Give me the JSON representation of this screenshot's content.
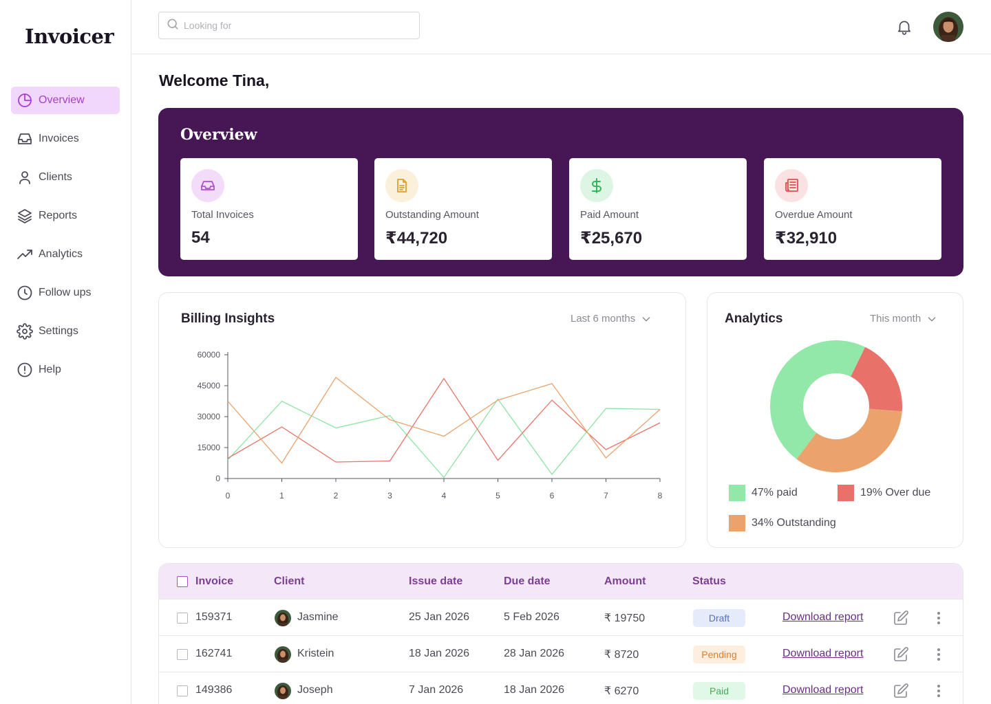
{
  "app": {
    "logo": "Invoicer"
  },
  "sidebar": {
    "items": [
      {
        "label": "Overview",
        "icon": "pie-chart-icon",
        "active": true
      },
      {
        "label": "Invoices",
        "icon": "inbox-icon"
      },
      {
        "label": "Clients",
        "icon": "user-icon"
      },
      {
        "label": "Reports",
        "icon": "layers-icon"
      },
      {
        "label": "Analytics",
        "icon": "trend-up-icon"
      },
      {
        "label": "Follow ups",
        "icon": "clock-icon"
      },
      {
        "label": "Settings",
        "icon": "gear-icon"
      },
      {
        "label": "Help",
        "icon": "alert-circle-icon"
      }
    ]
  },
  "header": {
    "search_placeholder": "Looking for"
  },
  "welcome": "Welcome Tina,",
  "overview": {
    "title": "Overview",
    "stats": [
      {
        "label": "Total Invoices",
        "value": "54",
        "icon": "inbox-icon",
        "color": "#b04fd0",
        "bg": "#f3dcfa"
      },
      {
        "label": "Outstanding Amount",
        "value": "₹44,720",
        "icon": "document-icon",
        "color": "#d9a12e",
        "bg": "#fbf0d9"
      },
      {
        "label": "Paid Amount",
        "value": "₹25,670",
        "icon": "dollar-icon",
        "color": "#33b55c",
        "bg": "#dcf6e3"
      },
      {
        "label": "Overdue Amount",
        "value": "₹32,910",
        "icon": "newspaper-icon",
        "color": "#e04d4d",
        "bg": "#fbe2e2"
      }
    ]
  },
  "billing": {
    "title": "Billing Insights",
    "range": "Last 6 months"
  },
  "analytics": {
    "title": "Analytics",
    "range": "This month"
  },
  "chart_data": [
    {
      "type": "line",
      "x": [
        0,
        1,
        2,
        3,
        4,
        5,
        6,
        7,
        8
      ],
      "ylim": [
        0,
        60000
      ],
      "yticks": [
        "60000",
        "45000",
        "30000",
        "15000",
        "0"
      ],
      "xticks": [
        "0",
        "1",
        "2",
        "3",
        "4",
        "5",
        "6",
        "7",
        "8"
      ],
      "series": [
        {
          "color": "#8ee3a4",
          "values": [
            9000,
            37500,
            24500,
            30500,
            500,
            38500,
            2000,
            34000,
            33500
          ]
        },
        {
          "color": "#e87268",
          "values": [
            9800,
            25000,
            8000,
            8500,
            48500,
            8800,
            38000,
            14000,
            27000
          ]
        },
        {
          "color": "#eaa26c",
          "values": [
            37500,
            7500,
            49000,
            28500,
            20500,
            38000,
            46000,
            10000,
            33500
          ]
        }
      ]
    },
    {
      "type": "pie",
      "slices": [
        {
          "label": "47% paid",
          "value": 47,
          "color": "#92e8a8"
        },
        {
          "label": "19% Over due",
          "value": 19,
          "color": "#e8726a"
        },
        {
          "label": "34% Outstanding",
          "value": 34,
          "color": "#eba36d"
        }
      ]
    }
  ],
  "table": {
    "headers": [
      "Invoice",
      "Client",
      "Issue date",
      "Due date",
      "Amount",
      "Status"
    ],
    "rows": [
      {
        "invoice": "159371",
        "client": "Jasmine",
        "issue": "25 Jan 2026",
        "due": "5 Feb 2026",
        "amount": "₹ 19750",
        "status": "Draft",
        "status_class": "draft",
        "action": "Download report"
      },
      {
        "invoice": "162741",
        "client": "Kristein",
        "issue": "18 Jan 2026",
        "due": "28 Jan 2026",
        "amount": "₹ 8720",
        "status": "Pending",
        "status_class": "pending",
        "action": "Download report"
      },
      {
        "invoice": "149386",
        "client": "Joseph",
        "issue": "7 Jan 2026",
        "due": "18 Jan 2026",
        "amount": "₹ 6270",
        "status": "Paid",
        "status_class": "paid",
        "action": "Download report"
      }
    ]
  }
}
